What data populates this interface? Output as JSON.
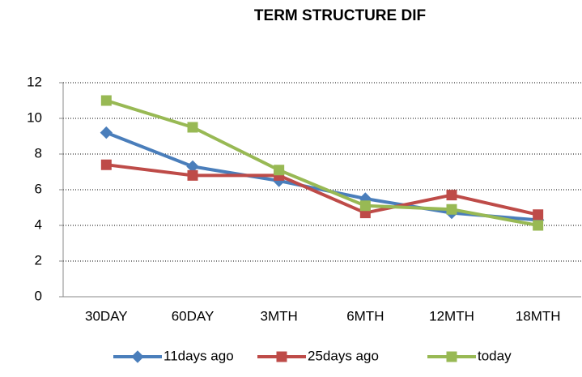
{
  "chart_data": {
    "type": "line",
    "title": "TERM STRUCTURE DIF",
    "categories": [
      "30DAY",
      "60DAY",
      "3MTH",
      "6MTH",
      "12MTH",
      "18MTH"
    ],
    "series": [
      {
        "name": "11days ago",
        "color": "#4a7ebb",
        "marker": "diamond",
        "values": [
          9.2,
          7.3,
          6.5,
          5.5,
          4.7,
          4.3
        ]
      },
      {
        "name": "25days ago",
        "color": "#be4b48",
        "marker": "square",
        "values": [
          7.4,
          6.8,
          6.8,
          4.7,
          5.7,
          4.6
        ]
      },
      {
        "name": "today",
        "color": "#98b954",
        "marker": "square",
        "values": [
          11,
          9.5,
          7.1,
          5.1,
          4.9,
          4.0
        ]
      }
    ],
    "ylim": [
      0,
      12
    ],
    "yticks": [
      0,
      2,
      4,
      6,
      8,
      10,
      12
    ],
    "grid": true,
    "legend": "bottom"
  }
}
